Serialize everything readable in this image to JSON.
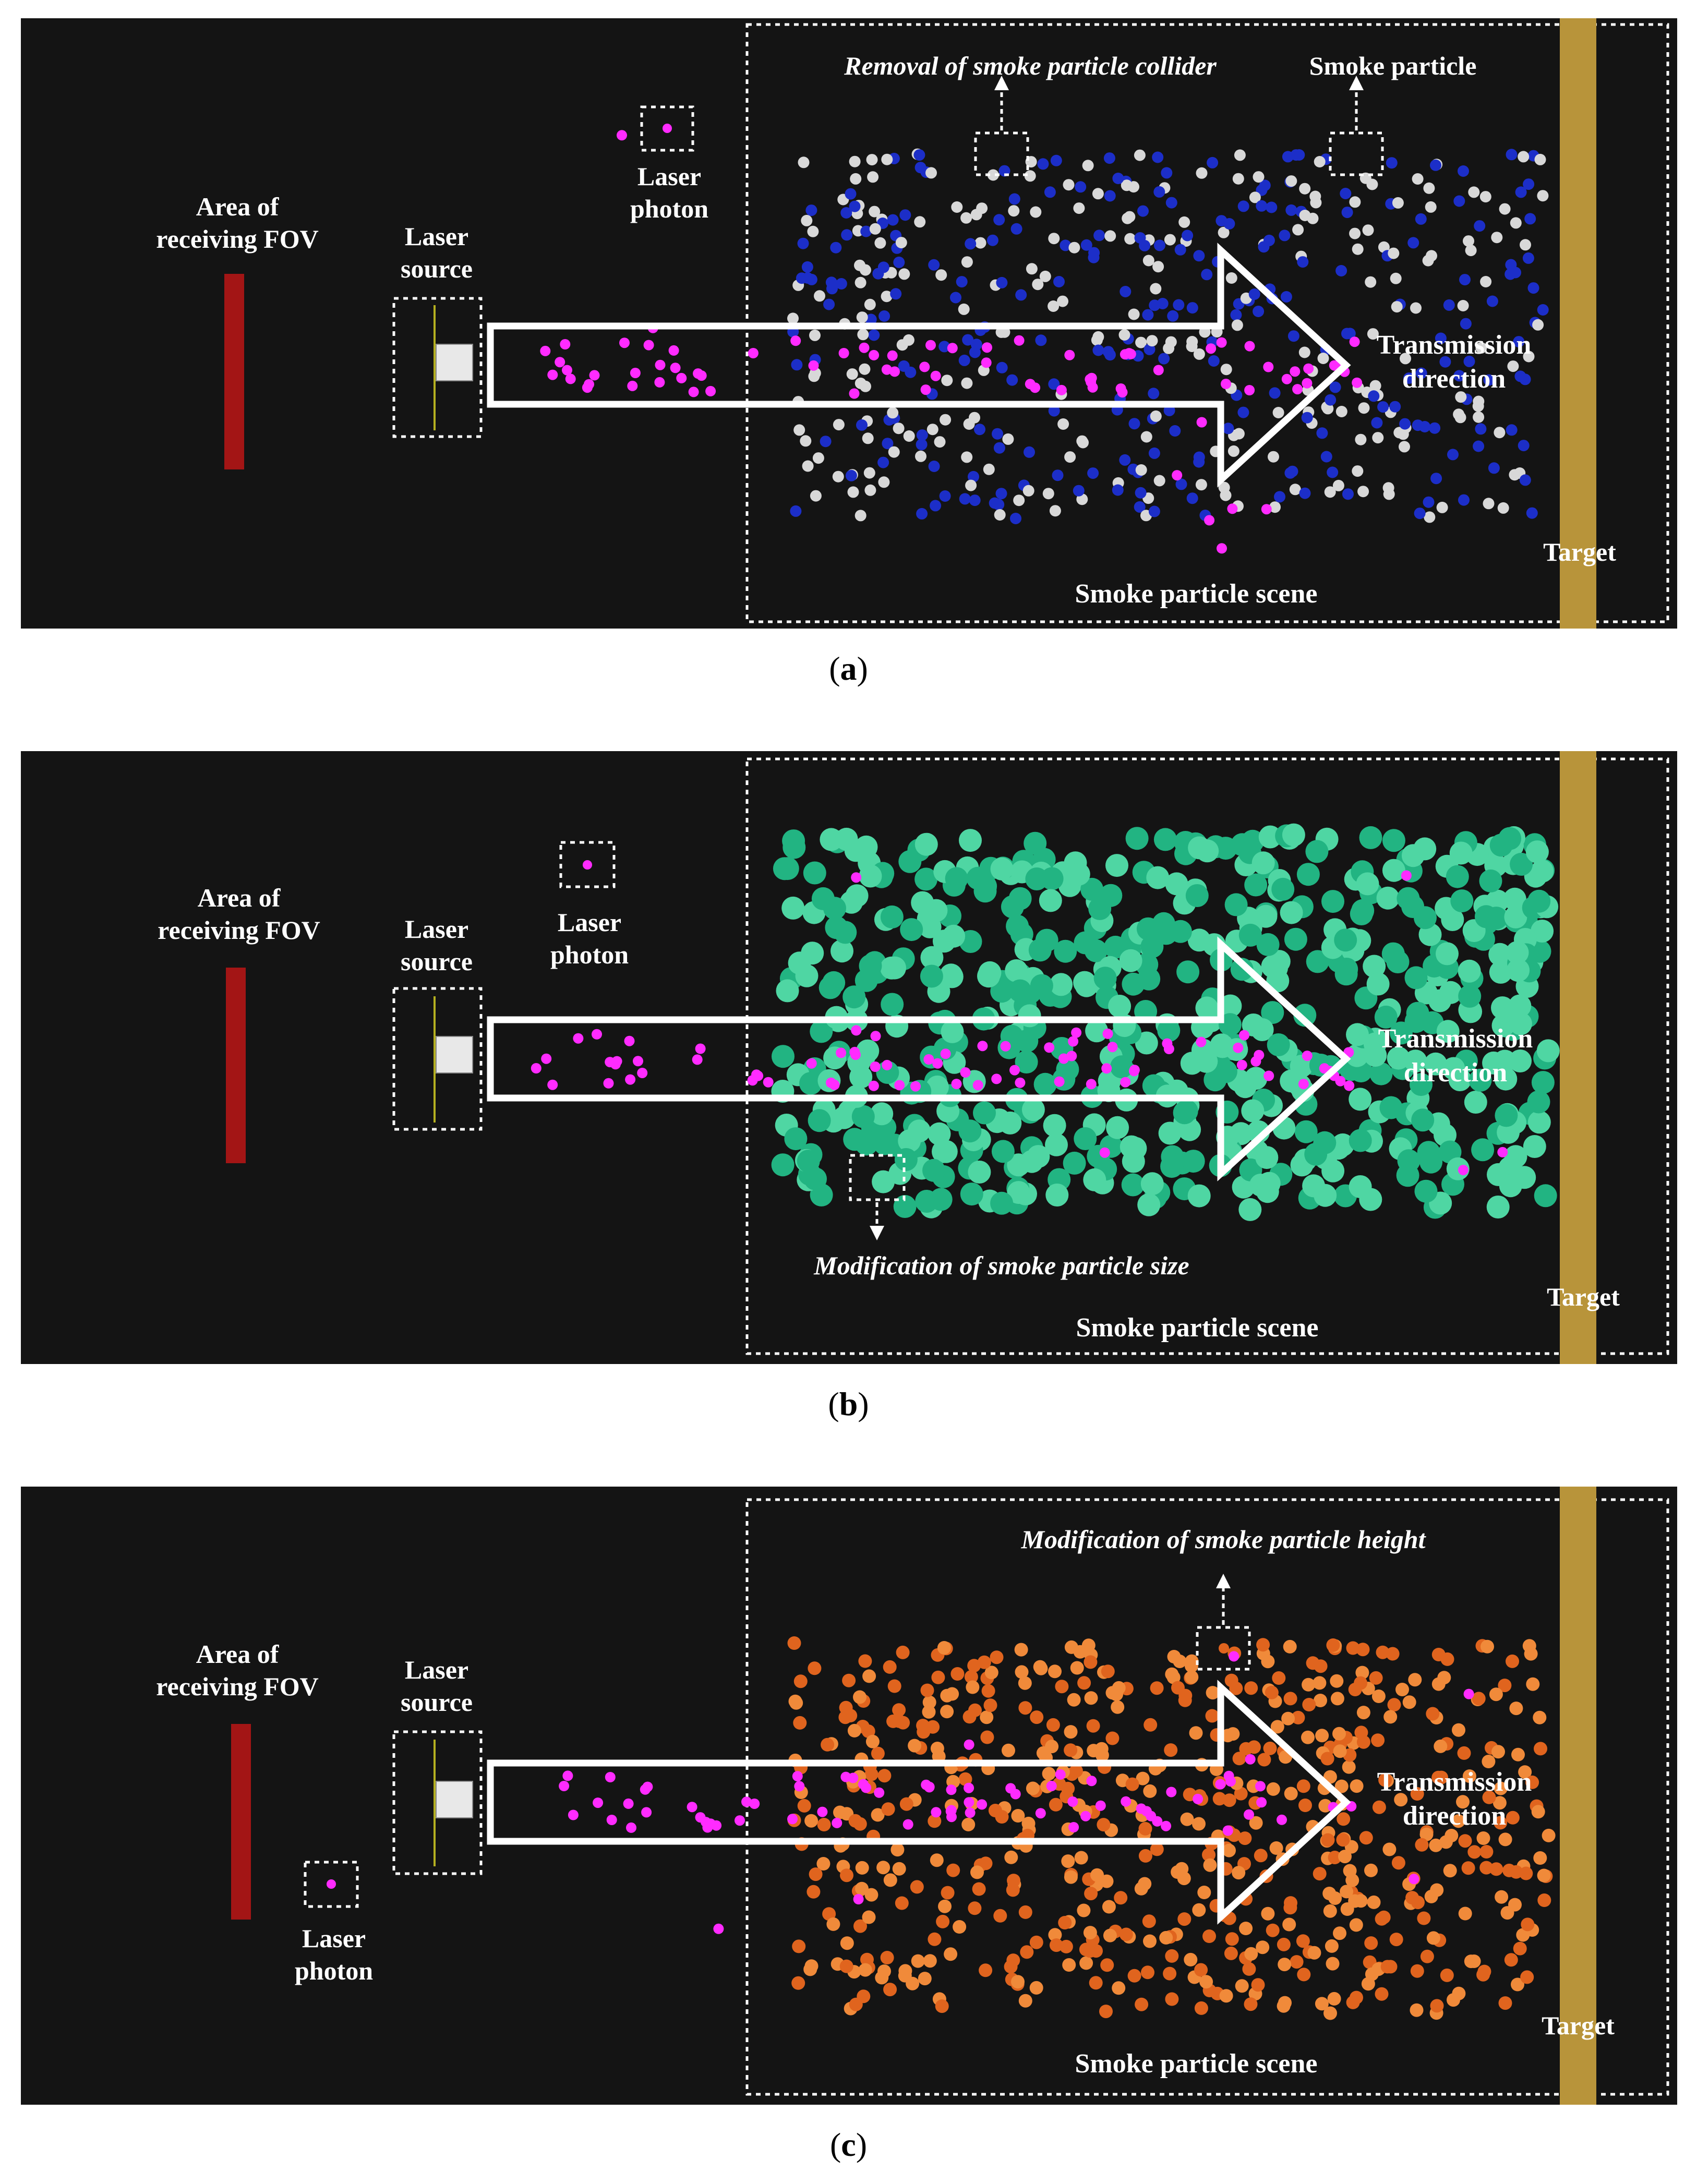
{
  "colors": {
    "background": "#141414",
    "fov_bar": "#a31515",
    "target_bar": "#b8943a",
    "photon": "#ff2bff",
    "arrow": "#ffffff"
  },
  "labels": {
    "area_of_receiving_fov": [
      "Area of",
      "receiving FOV"
    ],
    "laser_source": [
      "Laser",
      "source"
    ],
    "laser_photon": [
      "Laser",
      "photon"
    ],
    "transmission_direction": [
      "Transmission",
      "direction"
    ],
    "smoke_particle_scene": "Smoke  particle scene",
    "target": "Target"
  },
  "panels": [
    {
      "id": "a",
      "caption_prefix": "(",
      "caption_letter": "a",
      "caption_suffix": ")",
      "annotation": "Removal of smoke particle collider",
      "annotation_2": "Smoke particle",
      "particle_colors": [
        "#1c2ec8",
        "#d8d8d8"
      ],
      "particle_style": "small-two-tone"
    },
    {
      "id": "b",
      "caption_prefix": "(",
      "caption_letter": "b",
      "caption_suffix": ")",
      "annotation": "Modification of smoke particle size",
      "particle_colors": [
        "#22b482",
        "#4fd6a3"
      ],
      "particle_style": "large-green"
    },
    {
      "id": "c",
      "caption_prefix": "(",
      "caption_letter": "c",
      "caption_suffix": ")",
      "annotation": "Modification of smoke particle height",
      "particle_colors": [
        "#e0641e",
        "#f08a3a"
      ],
      "particle_style": "small-orange"
    }
  ]
}
